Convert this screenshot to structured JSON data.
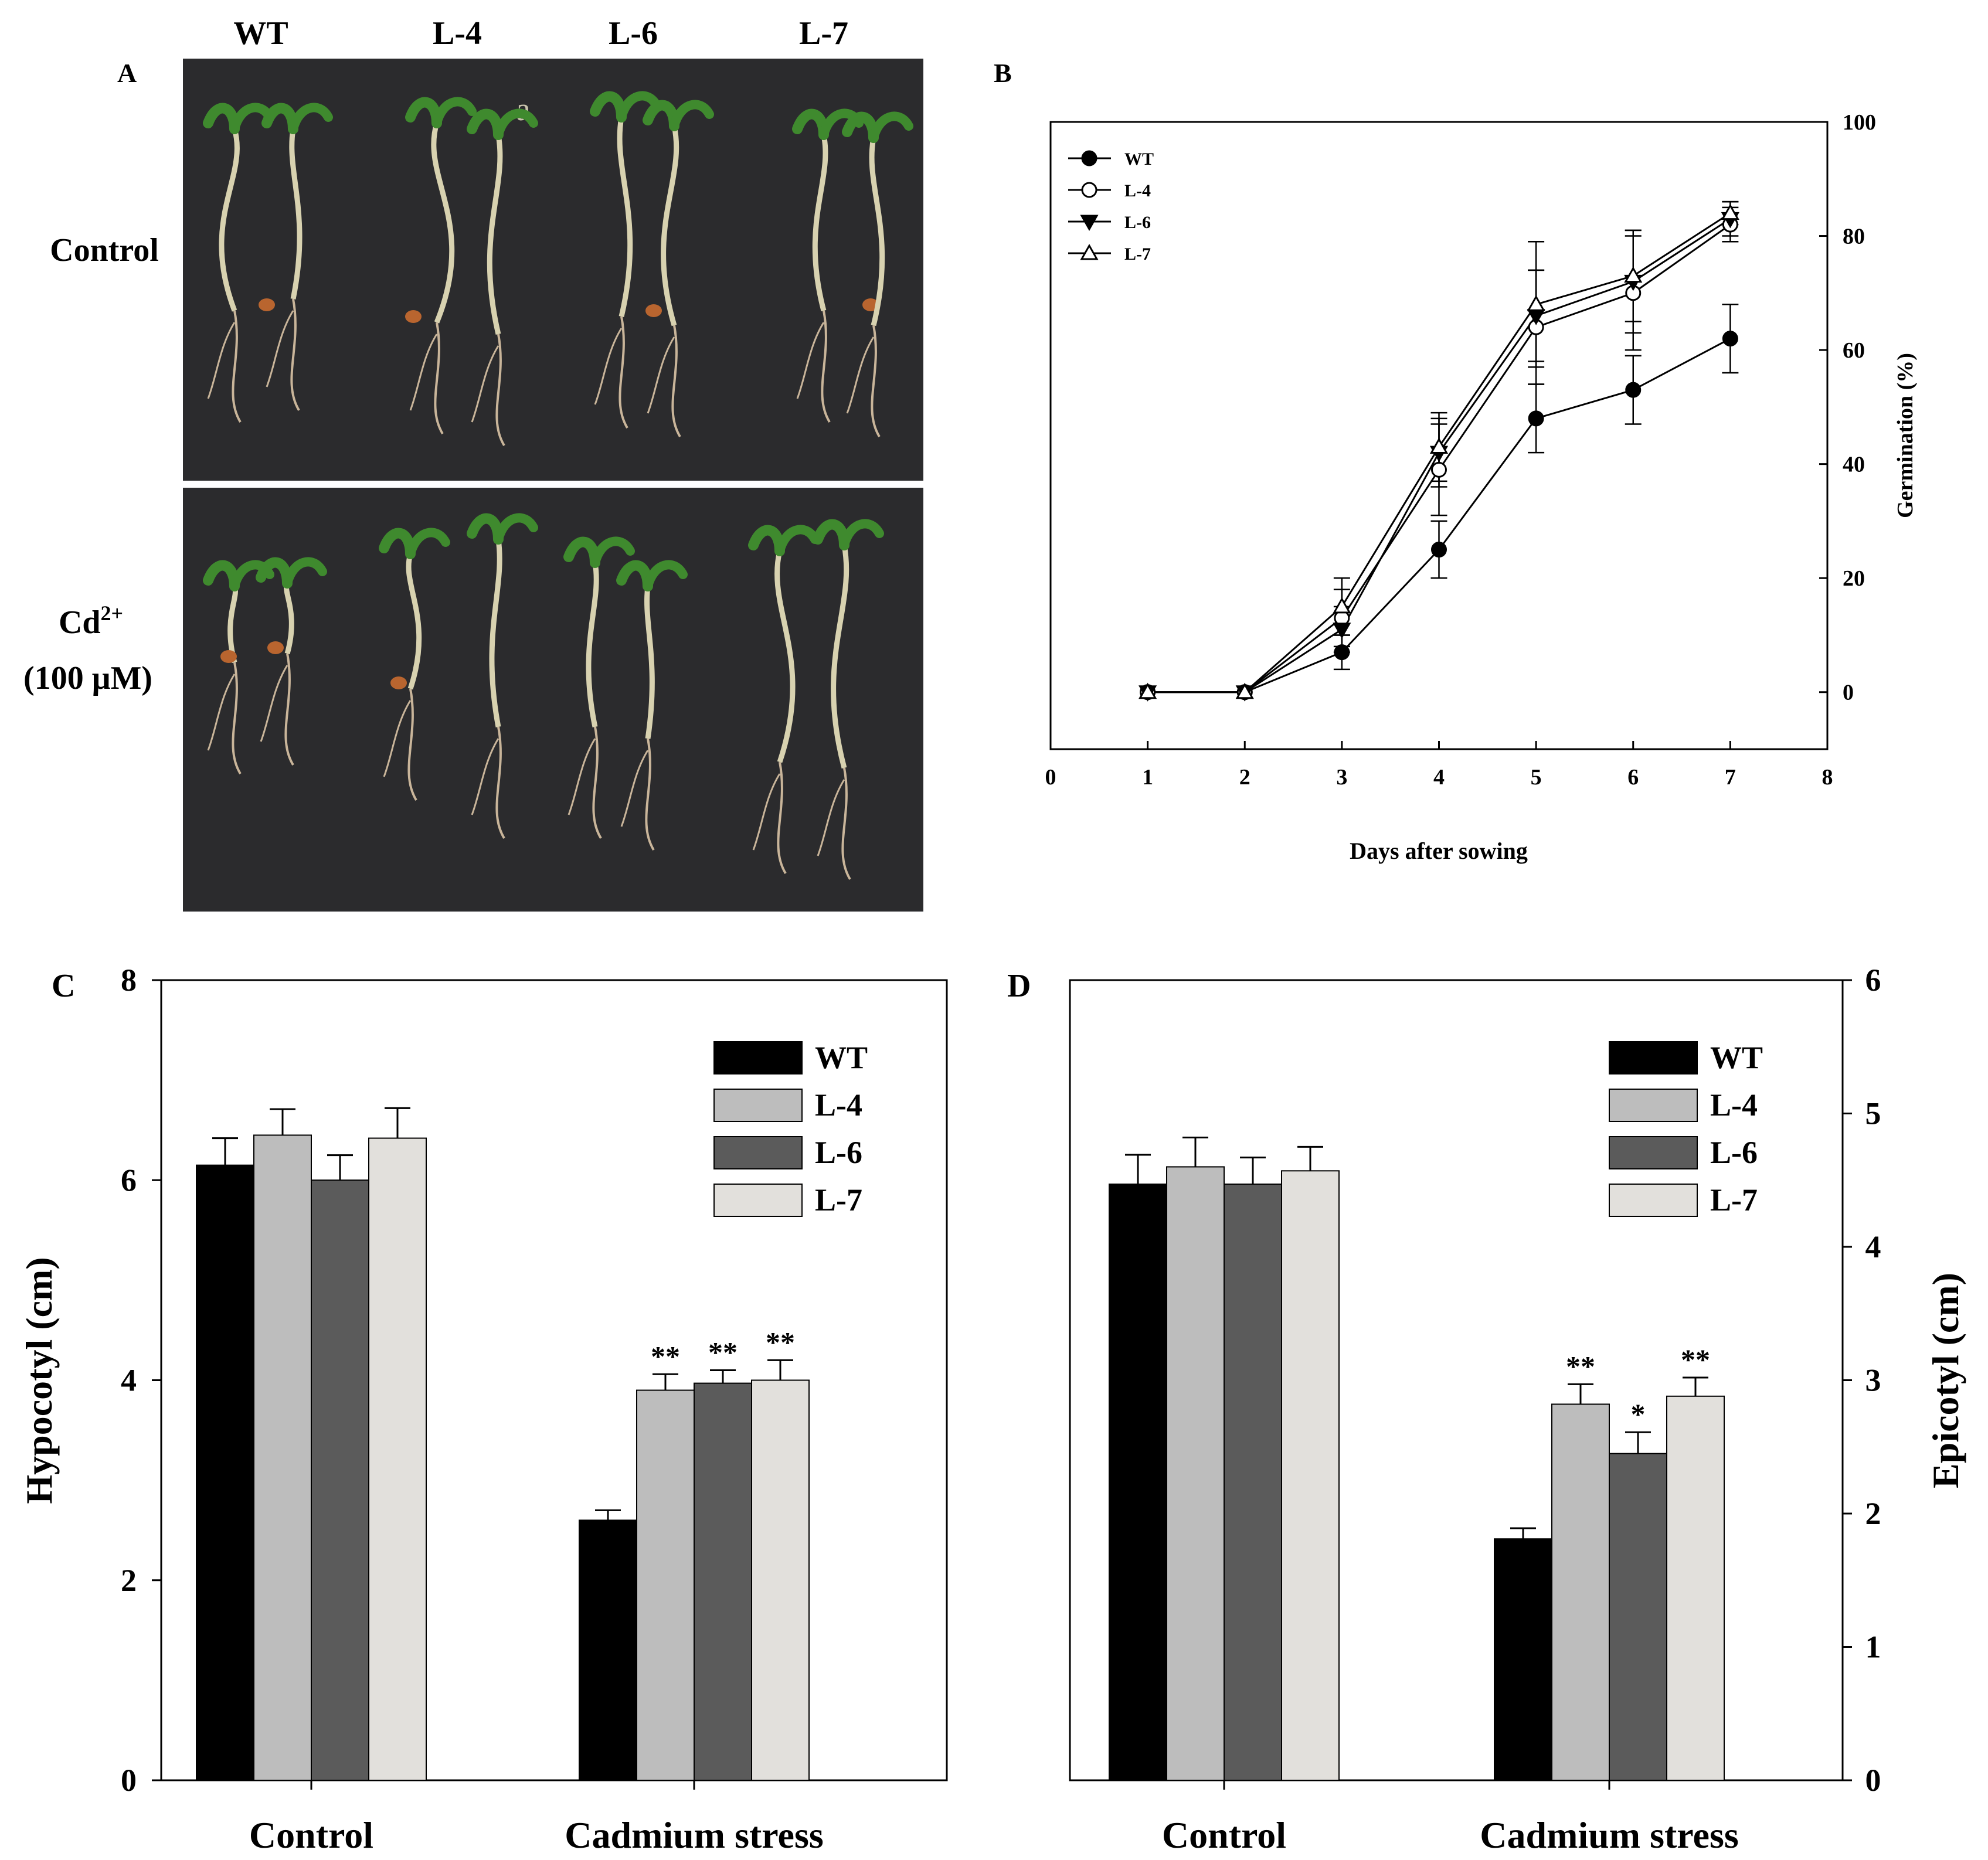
{
  "panel_a": {
    "letter": "A",
    "lines": [
      "WT",
      "L-4",
      "L-6",
      "L-7"
    ],
    "row_labels": {
      "control": "Control",
      "cd_main": "Cd",
      "cd_sup": "2+",
      "cd_conc": "(100 μM)"
    },
    "stray_mark": "a",
    "background_color": "#2b2b2d",
    "hypocotyl_color": "#d8d2b0",
    "cotyledon_color": "#3f8a2e",
    "seed_color": "#b9652f"
  },
  "chart_data": [
    {
      "panel": "B",
      "type": "line",
      "xlabel": "Days after sowing",
      "ylabel": "Germination (%)",
      "xlim": [
        0,
        8
      ],
      "ylim": [
        -10,
        100
      ],
      "xticks": [
        0,
        1,
        2,
        3,
        4,
        5,
        6,
        7,
        8
      ],
      "yticks": [
        0,
        20,
        40,
        60,
        80,
        100
      ],
      "y_axis_side": "right",
      "legend_position": "top-left",
      "x": [
        1,
        2,
        3,
        4,
        5,
        6,
        7
      ],
      "series": [
        {
          "name": "WT",
          "marker": "circle-filled",
          "values": [
            0,
            0,
            7,
            25,
            48,
            53,
            62
          ],
          "errors": [
            0,
            0,
            3,
            5,
            6,
            6,
            6
          ]
        },
        {
          "name": "L-4",
          "marker": "circle-open",
          "values": [
            0,
            0,
            13,
            39,
            64,
            70,
            82
          ],
          "errors": [
            0,
            0,
            5,
            8,
            10,
            10,
            3
          ]
        },
        {
          "name": "L-6",
          "marker": "triangle-down-filled",
          "values": [
            0,
            0,
            11,
            42,
            66,
            72,
            83
          ],
          "errors": [
            0,
            0,
            4,
            6,
            8,
            9,
            3
          ]
        },
        {
          "name": "L-7",
          "marker": "triangle-up-open",
          "values": [
            0,
            0,
            15,
            43,
            68,
            73,
            84
          ],
          "errors": [
            0,
            0,
            5,
            6,
            11,
            8,
            2
          ]
        }
      ]
    },
    {
      "panel": "C",
      "type": "bar",
      "ylabel": "Hypocotyl (cm)",
      "ylim": [
        0,
        8
      ],
      "yticks": [
        0,
        2,
        4,
        6,
        8
      ],
      "y_axis_side": "left",
      "legend_position": "top-right",
      "categories": [
        "Control",
        "Cadmium stress"
      ],
      "series": [
        {
          "name": "WT",
          "color": "#000000",
          "values": [
            6.15,
            2.6
          ],
          "errors": [
            0.27,
            0.1
          ],
          "annotations": [
            "",
            ""
          ]
        },
        {
          "name": "L-4",
          "color": "#bdbdbd",
          "values": [
            6.45,
            3.9
          ],
          "errors": [
            0.26,
            0.16
          ],
          "annotations": [
            "",
            "**"
          ]
        },
        {
          "name": "L-6",
          "color": "#5b5b5b",
          "values": [
            6.0,
            3.97
          ],
          "errors": [
            0.25,
            0.13
          ],
          "annotations": [
            "",
            "**"
          ]
        },
        {
          "name": "L-7",
          "color": "#e2e0dc",
          "values": [
            6.42,
            4.0
          ],
          "errors": [
            0.3,
            0.2
          ],
          "annotations": [
            "",
            "**"
          ]
        }
      ]
    },
    {
      "panel": "D",
      "type": "bar",
      "ylabel": "Epicotyl (cm)",
      "ylim": [
        0,
        6
      ],
      "yticks": [
        0,
        1,
        2,
        3,
        4,
        5,
        6
      ],
      "y_axis_side": "right",
      "legend_position": "top-right",
      "categories": [
        "Control",
        "Cadmium stress"
      ],
      "series": [
        {
          "name": "WT",
          "color": "#000000",
          "values": [
            4.47,
            1.81
          ],
          "errors": [
            0.22,
            0.08
          ],
          "annotations": [
            "",
            ""
          ]
        },
        {
          "name": "L-4",
          "color": "#bdbdbd",
          "values": [
            4.6,
            2.82
          ],
          "errors": [
            0.22,
            0.15
          ],
          "annotations": [
            "",
            "**"
          ]
        },
        {
          "name": "L-6",
          "color": "#5b5b5b",
          "values": [
            4.47,
            2.45
          ],
          "errors": [
            0.2,
            0.16
          ],
          "annotations": [
            "",
            "*"
          ]
        },
        {
          "name": "L-7",
          "color": "#e2e0dc",
          "values": [
            4.57,
            2.88
          ],
          "errors": [
            0.18,
            0.14
          ],
          "annotations": [
            "",
            "**"
          ]
        }
      ]
    }
  ]
}
